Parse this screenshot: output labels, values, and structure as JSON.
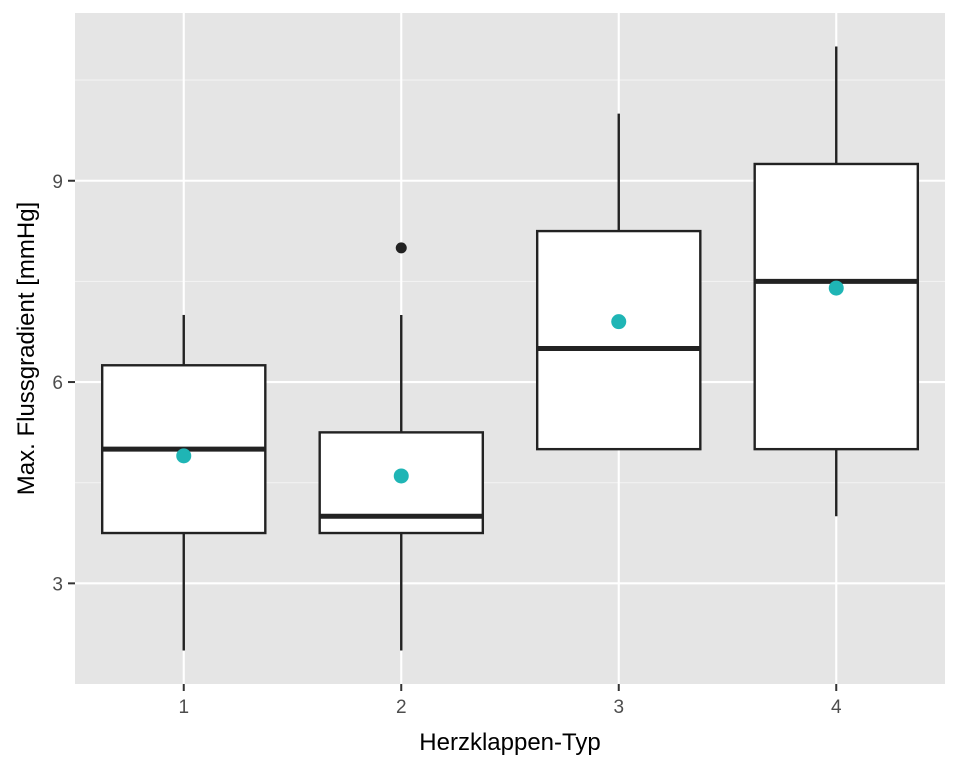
{
  "chart_data": {
    "type": "boxplot",
    "xlabel": "Herzklappen-Typ",
    "ylabel": "Max. Flussgradient [mmHg]",
    "categories": [
      "1",
      "2",
      "3",
      "4"
    ],
    "y_ticks": [
      3,
      6,
      9
    ],
    "y_tick_labels": [
      "3",
      "6",
      "9"
    ],
    "ylim": [
      1.5,
      11.5
    ],
    "grid": true,
    "boxes": [
      {
        "category": "1",
        "whisker_low": 2,
        "q1": 3.75,
        "median": 5,
        "q3": 6.25,
        "whisker_high": 7,
        "mean": 4.9,
        "outliers": []
      },
      {
        "category": "2",
        "whisker_low": 2,
        "q1": 3.75,
        "median": 4,
        "q3": 5.25,
        "whisker_high": 7,
        "mean": 4.6,
        "outliers": [
          8
        ]
      },
      {
        "category": "3",
        "whisker_low": 5,
        "q1": 5,
        "median": 6.5,
        "q3": 8.25,
        "whisker_high": 10,
        "mean": 6.9,
        "outliers": []
      },
      {
        "category": "4",
        "whisker_low": 4,
        "q1": 5,
        "median": 7.5,
        "q3": 9.25,
        "whisker_high": 11,
        "mean": 7.4,
        "outliers": []
      }
    ],
    "colors": {
      "panel_background": "#e5e5e5",
      "grid": "#ffffff",
      "box_fill": "#ffffff",
      "box_line": "#222222",
      "mean_point": "#1fb5b5",
      "outlier_point": "#222222"
    }
  }
}
